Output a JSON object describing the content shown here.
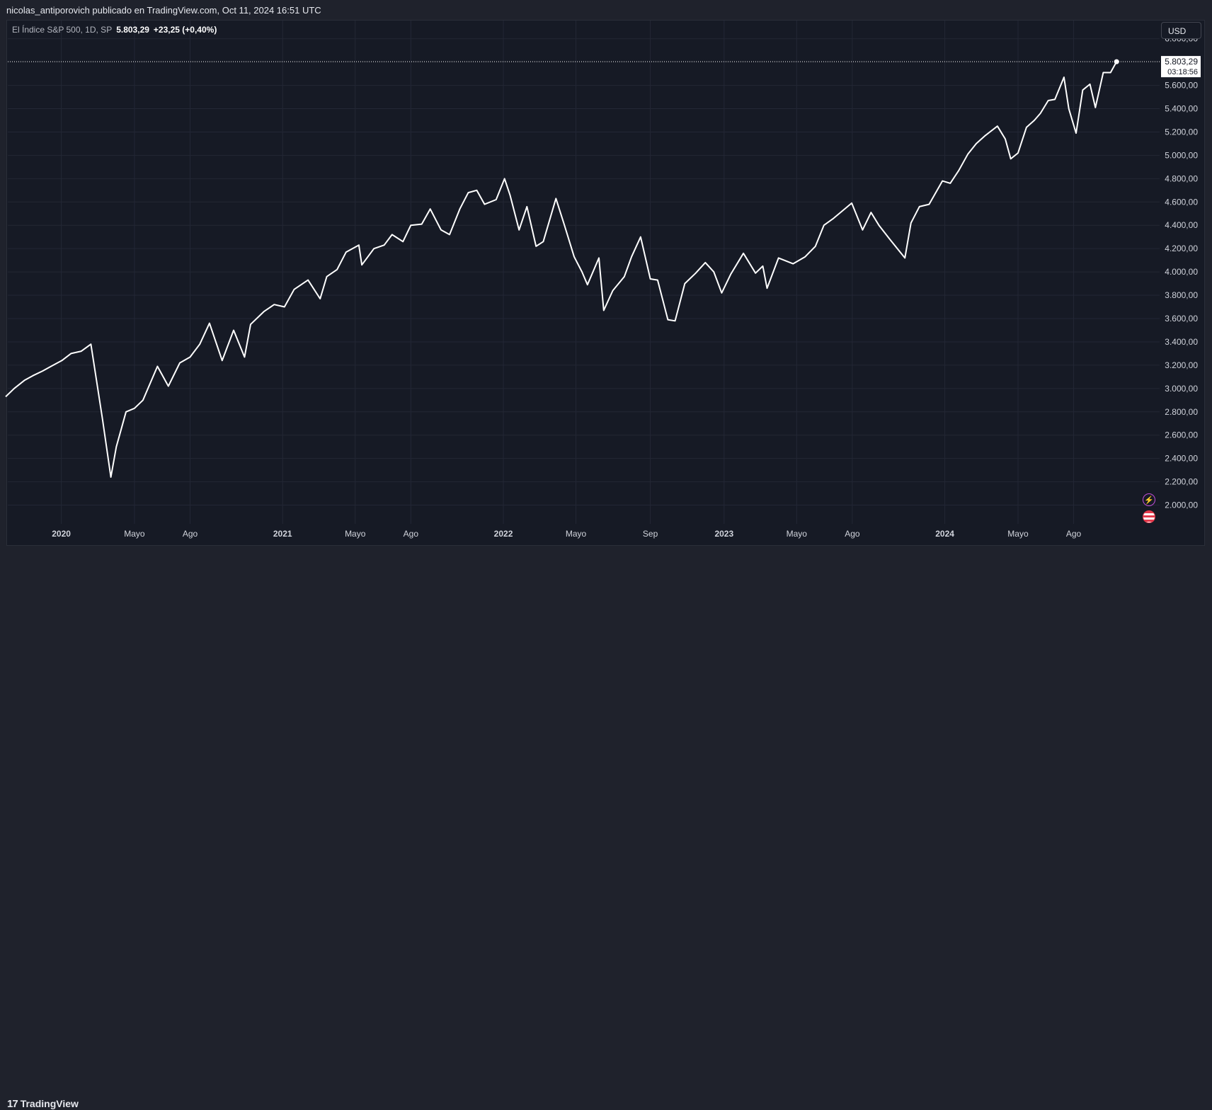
{
  "header": {
    "publisher_line": "nicolas_antiporovich publicado en TradingView.com, Oct 11, 2024 16:51 UTC"
  },
  "legend": {
    "symbol_info": "El Índice S&P 500, 1D, SP",
    "last_value": "5.803,29",
    "change": "+23,25 (+0,40%)"
  },
  "currency_button": "USD",
  "price_label": {
    "value": "5.803,29",
    "countdown": "03:18:56"
  },
  "footer": {
    "logo_mark": "17",
    "logo_text": "TradingView"
  },
  "icons": {
    "flash": "lightning-icon",
    "flag": "us-flag-icon"
  },
  "colors": {
    "background": "#161a25",
    "line": "#ffffff",
    "grid": "#232735",
    "axis_text": "#d1d4dc"
  },
  "chart_data": {
    "type": "line",
    "title": "",
    "xlabel": "",
    "ylabel": "",
    "ylim": [
      1900,
      6150
    ],
    "y_ticks": [
      2000,
      2200,
      2400,
      2600,
      2800,
      3000,
      3200,
      3400,
      3600,
      3800,
      4000,
      4200,
      4400,
      4600,
      4800,
      5000,
      5200,
      5400,
      5600,
      6000
    ],
    "y_tick_labels": [
      "2.000,00",
      "2.200,00",
      "2.400,00",
      "2.600,00",
      "2.800,00",
      "3.000,00",
      "3.200,00",
      "3.400,00",
      "3.600,00",
      "3.800,00",
      "4.000,00",
      "4.200,00",
      "4.400,00",
      "4.600,00",
      "4.800,00",
      "5.000,00",
      "5.200,00",
      "5.400,00",
      "5.600,00",
      "6.000,00"
    ],
    "x_ticks": [
      {
        "date": "2020-01-01",
        "label": "2020",
        "major": true
      },
      {
        "date": "2020-05-01",
        "label": "Mayo",
        "major": false
      },
      {
        "date": "2020-08-01",
        "label": "Ago",
        "major": false
      },
      {
        "date": "2021-01-01",
        "label": "2021",
        "major": true
      },
      {
        "date": "2021-05-01",
        "label": "Mayo",
        "major": false
      },
      {
        "date": "2021-08-01",
        "label": "Ago",
        "major": false
      },
      {
        "date": "2022-01-01",
        "label": "2022",
        "major": true
      },
      {
        "date": "2022-05-01",
        "label": "Mayo",
        "major": false
      },
      {
        "date": "2022-09-01",
        "label": "Sep",
        "major": false
      },
      {
        "date": "2023-01-01",
        "label": "2023",
        "major": true
      },
      {
        "date": "2023-05-01",
        "label": "Mayo",
        "major": false
      },
      {
        "date": "2023-08-01",
        "label": "Ago",
        "major": false
      },
      {
        "date": "2024-01-01",
        "label": "2024",
        "major": true
      },
      {
        "date": "2024-05-01",
        "label": "Mayo",
        "major": false
      },
      {
        "date": "2024-08-01",
        "label": "Ago",
        "major": false
      }
    ],
    "x_range": [
      "2019-10-01",
      "2024-12-20"
    ],
    "grid": true,
    "series": [
      {
        "x": [
          "2019-10-01",
          "2019-10-15",
          "2019-11-01",
          "2019-11-15",
          "2019-12-01",
          "2019-12-15",
          "2020-01-02",
          "2020-01-17",
          "2020-02-03",
          "2020-02-19",
          "2020-03-09",
          "2020-03-23",
          "2020-04-01",
          "2020-04-17",
          "2020-05-01",
          "2020-05-15",
          "2020-06-08",
          "2020-06-26",
          "2020-07-15",
          "2020-08-01",
          "2020-08-17",
          "2020-09-02",
          "2020-09-23",
          "2020-10-12",
          "2020-10-30",
          "2020-11-09",
          "2020-12-01",
          "2020-12-18",
          "2021-01-04",
          "2021-01-20",
          "2021-02-12",
          "2021-03-04",
          "2021-03-15",
          "2021-04-01",
          "2021-04-16",
          "2021-05-07",
          "2021-05-12",
          "2021-06-01",
          "2021-06-18",
          "2021-07-01",
          "2021-07-19",
          "2021-08-01",
          "2021-08-19",
          "2021-09-02",
          "2021-09-20",
          "2021-10-04",
          "2021-10-21",
          "2021-11-04",
          "2021-11-18",
          "2021-12-01",
          "2021-12-20",
          "2022-01-03",
          "2022-01-12",
          "2022-01-27",
          "2022-02-09",
          "2022-02-24",
          "2022-03-08",
          "2022-03-29",
          "2022-04-12",
          "2022-04-28",
          "2022-05-11",
          "2022-05-20",
          "2022-06-08",
          "2022-06-16",
          "2022-07-01",
          "2022-07-20",
          "2022-08-01",
          "2022-08-16",
          "2022-09-01",
          "2022-09-13",
          "2022-09-30",
          "2022-10-12",
          "2022-10-28",
          "2022-11-15",
          "2022-12-01",
          "2022-12-15",
          "2022-12-28",
          "2023-01-12",
          "2023-02-02",
          "2023-02-22",
          "2023-03-06",
          "2023-03-13",
          "2023-04-01",
          "2023-04-25",
          "2023-05-15",
          "2023-06-01",
          "2023-06-15",
          "2023-07-01",
          "2023-07-31",
          "2023-08-18",
          "2023-09-01",
          "2023-09-14",
          "2023-10-02",
          "2023-10-27",
          "2023-11-06",
          "2023-11-20",
          "2023-12-06",
          "2023-12-28",
          "2024-01-10",
          "2024-01-24",
          "2024-02-08",
          "2024-02-22",
          "2024-03-08",
          "2024-03-28",
          "2024-04-10",
          "2024-04-19",
          "2024-05-01",
          "2024-05-15",
          "2024-05-28",
          "2024-06-07",
          "2024-06-20",
          "2024-07-01",
          "2024-07-16",
          "2024-07-24",
          "2024-08-05",
          "2024-08-16",
          "2024-08-28",
          "2024-09-06",
          "2024-09-19",
          "2024-10-01",
          "2024-10-11"
        ],
        "y": [
          2930,
          3000,
          3070,
          3110,
          3150,
          3190,
          3240,
          3300,
          3320,
          3380,
          2740,
          2240,
          2500,
          2800,
          2830,
          2900,
          3190,
          3020,
          3220,
          3270,
          3380,
          3560,
          3240,
          3500,
          3270,
          3550,
          3660,
          3720,
          3700,
          3850,
          3930,
          3770,
          3960,
          4020,
          4170,
          4230,
          4060,
          4200,
          4230,
          4320,
          4260,
          4400,
          4410,
          4540,
          4360,
          4320,
          4540,
          4680,
          4700,
          4580,
          4620,
          4800,
          4660,
          4360,
          4560,
          4220,
          4260,
          4630,
          4400,
          4130,
          4000,
          3890,
          4120,
          3670,
          3840,
          3960,
          4130,
          4300,
          3940,
          3930,
          3590,
          3580,
          3900,
          3990,
          4080,
          4000,
          3820,
          3980,
          4160,
          3990,
          4050,
          3860,
          4120,
          4070,
          4130,
          4220,
          4400,
          4460,
          4590,
          4360,
          4510,
          4400,
          4280,
          4120,
          4420,
          4560,
          4580,
          4780,
          4760,
          4870,
          5010,
          5100,
          5170,
          5250,
          5140,
          4970,
          5020,
          5240,
          5300,
          5360,
          5470,
          5480,
          5670,
          5400,
          5190,
          5560,
          5610,
          5410,
          5710,
          5710,
          5803
        ]
      }
    ],
    "last_price": 5803.29
  }
}
